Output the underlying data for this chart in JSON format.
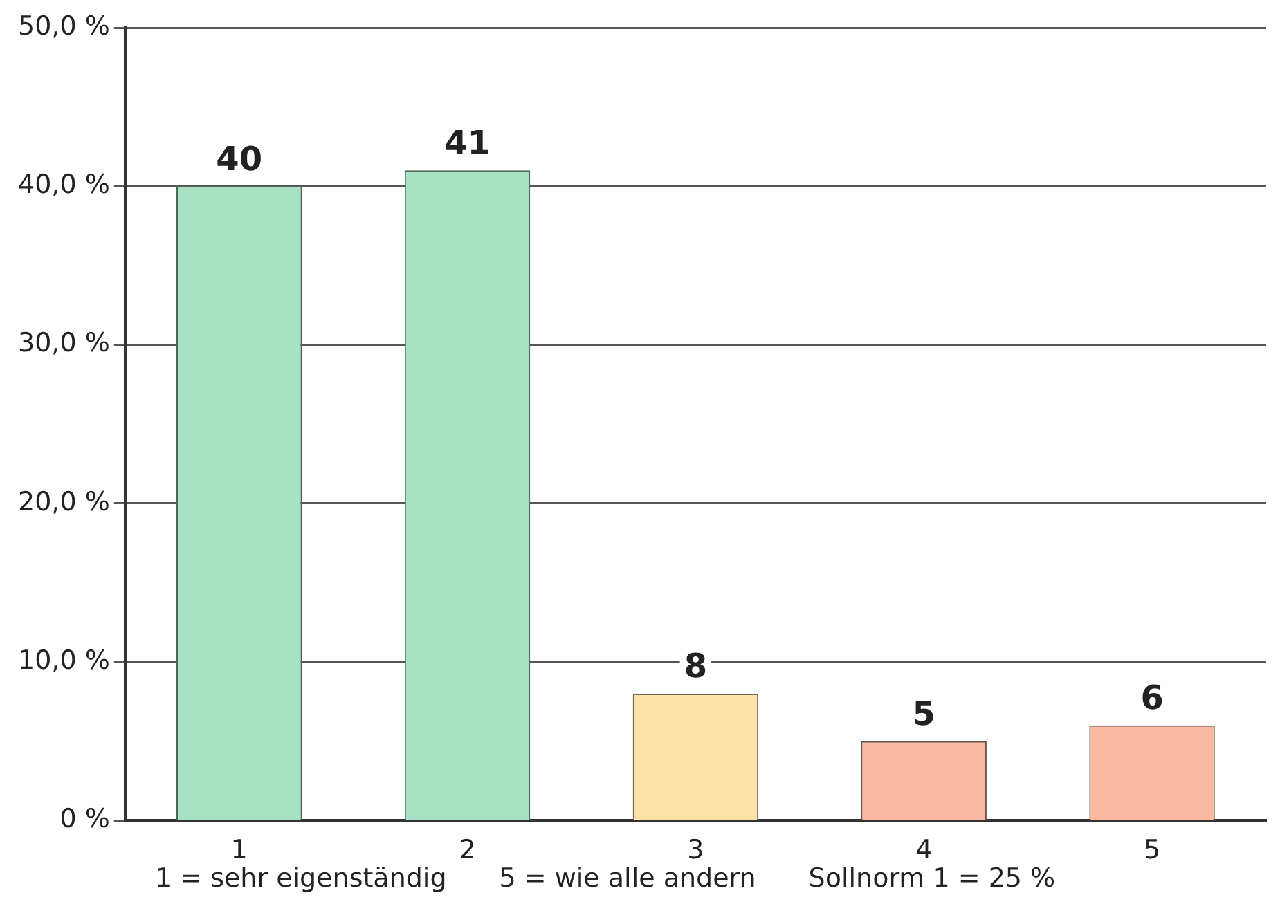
{
  "chart_data": {
    "type": "bar",
    "categories": [
      "1",
      "2",
      "3",
      "4",
      "5"
    ],
    "values": [
      40,
      41,
      8,
      5,
      6
    ],
    "colors": [
      "#a8e2c4",
      "#a8e2c4",
      "#fde2a8",
      "#f9b9a0",
      "#f9b9a0"
    ],
    "data_labels": true,
    "grid": "y",
    "legend": false,
    "ylim": [
      0,
      50
    ],
    "yticks": [
      {
        "value": 0,
        "label": "0 %"
      },
      {
        "value": 10,
        "label": "10,0 %"
      },
      {
        "value": 20,
        "label": "20,0 %"
      },
      {
        "value": 30,
        "label": "30,0 %"
      },
      {
        "value": 40,
        "label": "40,0 %"
      },
      {
        "value": 50,
        "label": "50,0 %"
      }
    ],
    "annotations": [
      "1 = sehr eigenständig",
      "5 = wie alle andern",
      "Sollnorm 1 = 25 %"
    ]
  }
}
